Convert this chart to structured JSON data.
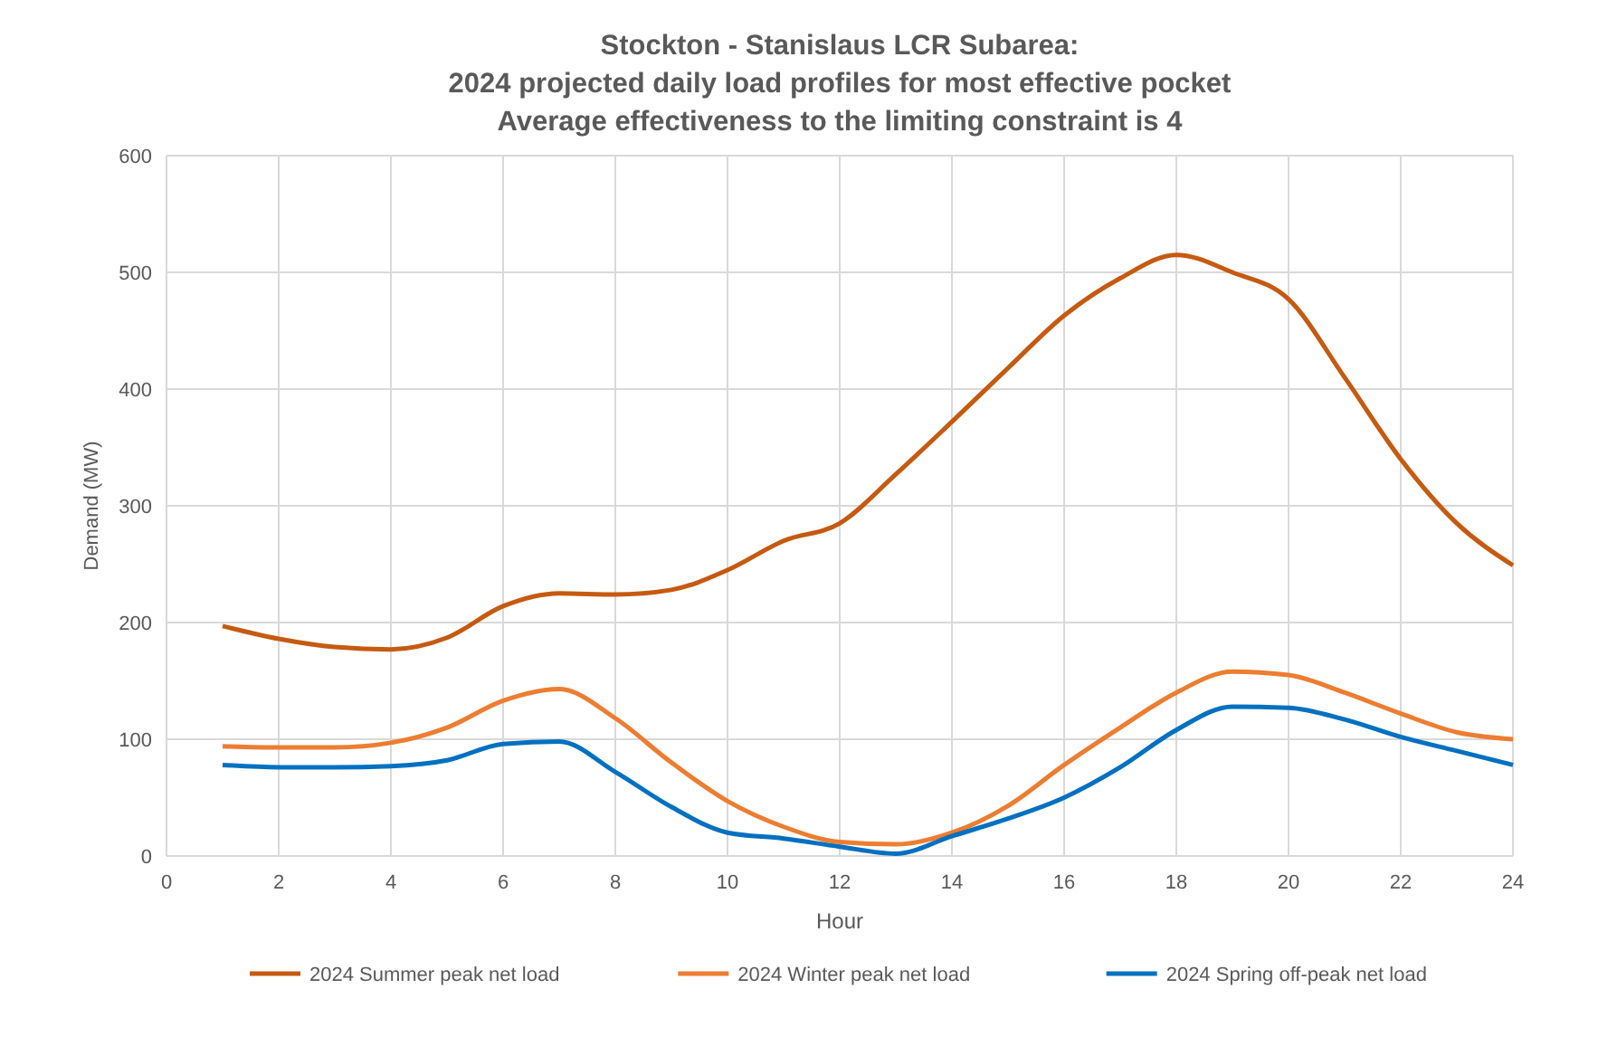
{
  "chart_data": {
    "type": "line",
    "title": "Stockton - Stanislaus LCR Subarea:\n2024 projected daily load profiles for most effective pocket\nAverage effectiveness to the limiting constraint is 4",
    "xlabel": "Hour",
    "ylabel": "Demand (MW)",
    "x": [
      1,
      2,
      3,
      4,
      5,
      6,
      7,
      8,
      9,
      10,
      11,
      12,
      13,
      14,
      15,
      16,
      17,
      18,
      19,
      20,
      21,
      22,
      23,
      24
    ],
    "xlim": [
      0,
      24
    ],
    "xticks": [
      0,
      2,
      4,
      6,
      8,
      10,
      12,
      14,
      16,
      18,
      20,
      22,
      24
    ],
    "ylim": [
      0,
      600
    ],
    "yticks": [
      0,
      100,
      200,
      300,
      400,
      500,
      600
    ],
    "grid": true,
    "legend": "bottom",
    "marker": "none",
    "line_style": "solid",
    "series": [
      {
        "name": "2024 Summer peak net load",
        "color": "#c55a11",
        "values": [
          197,
          186,
          179,
          177,
          187,
          214,
          225,
          224,
          228,
          245,
          270,
          285,
          327,
          372,
          418,
          463,
          495,
          515,
          500,
          477,
          410,
          340,
          285,
          249
        ]
      },
      {
        "name": "2024 Winter peak net load",
        "color": "#ed7d31",
        "values": [
          94,
          93,
          93,
          97,
          110,
          133,
          143,
          118,
          80,
          47,
          25,
          12,
          10,
          20,
          43,
          78,
          110,
          140,
          158,
          155,
          140,
          122,
          106,
          100
        ]
      },
      {
        "name": "2024 Spring off-peak net load",
        "color": "#0070c0",
        "values": [
          78,
          76,
          76,
          77,
          82,
          96,
          98,
          72,
          42,
          20,
          15,
          8,
          2,
          17,
          32,
          50,
          76,
          108,
          128,
          127,
          117,
          102,
          90,
          78
        ]
      }
    ]
  }
}
